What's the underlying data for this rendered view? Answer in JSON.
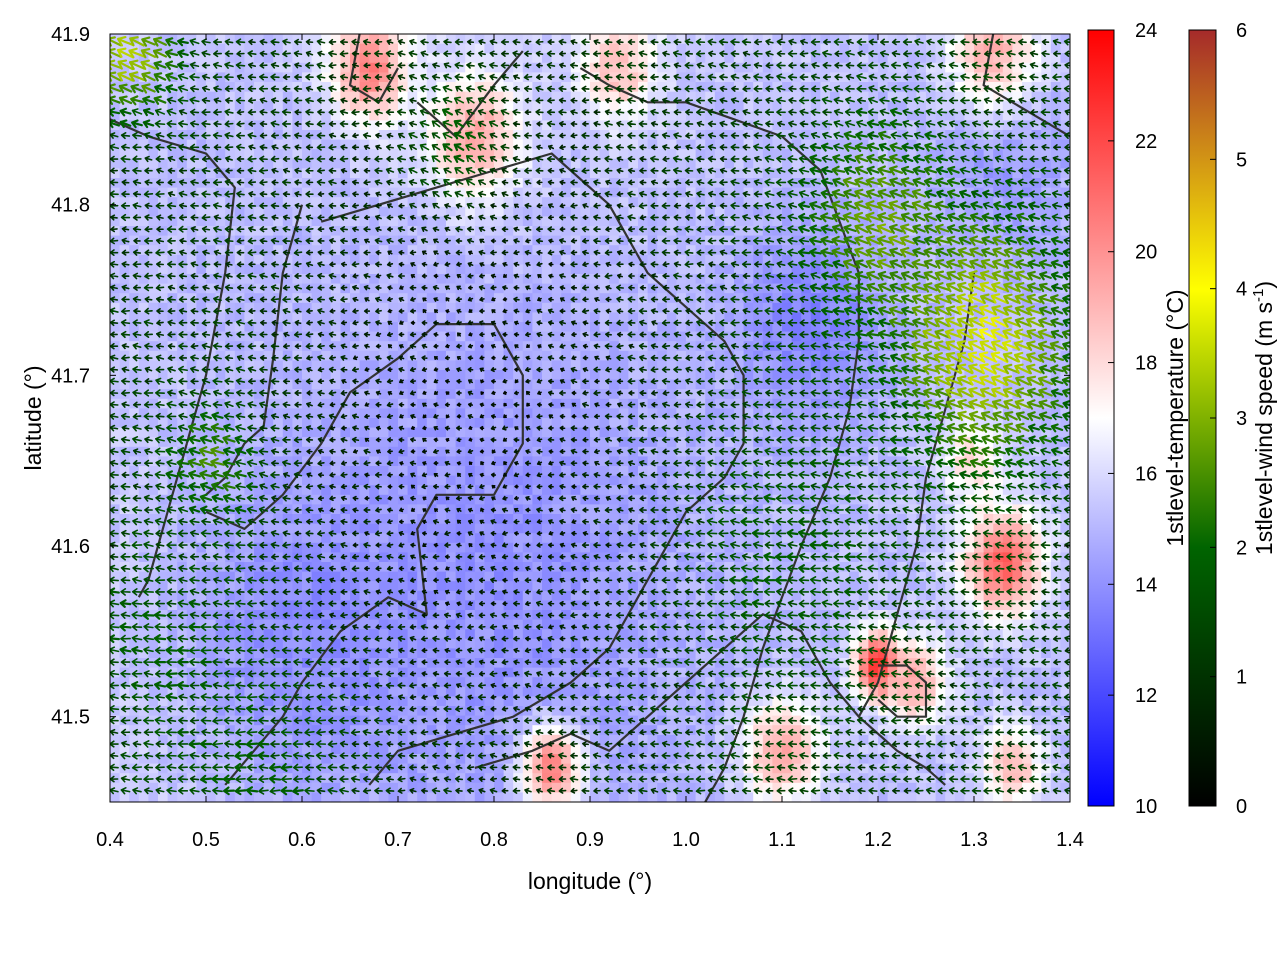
{
  "chart_data": {
    "type": "heatmap",
    "title": "",
    "xlabel": "longitude (°)",
    "ylabel": "latitude (°)",
    "xlim": [
      0.4,
      1.4
    ],
    "ylim": [
      41.45,
      41.9
    ],
    "x_ticks": [
      "0.4",
      "0.5",
      "0.6",
      "0.7",
      "0.8",
      "0.9",
      "1.0",
      "1.1",
      "1.2",
      "1.3",
      "1.4"
    ],
    "x_tick_values": [
      0.4,
      0.5,
      0.6,
      0.7,
      0.8,
      0.9,
      1.0,
      1.1,
      1.2,
      1.3,
      1.4
    ],
    "y_ticks": [
      "41.5",
      "41.6",
      "41.7",
      "41.8",
      "41.9"
    ],
    "y_tick_values": [
      41.5,
      41.6,
      41.7,
      41.8,
      41.9
    ],
    "temperature_colorbar": {
      "label": "1stlevel-temperature (°C)",
      "range": [
        10,
        24
      ],
      "ticks": [
        "10",
        "12",
        "14",
        "16",
        "18",
        "20",
        "22",
        "24"
      ],
      "tick_values": [
        10,
        12,
        14,
        16,
        18,
        20,
        22,
        24
      ],
      "colors": [
        "#0000ff",
        "#ffffff",
        "#ff0000"
      ]
    },
    "wind_colorbar": {
      "label": "1stlevel-wind speed (m s-1)",
      "label_main": "1stlevel-wind speed (m s",
      "label_sup": "-1",
      "label_end": ")",
      "range": [
        0,
        6
      ],
      "ticks": [
        "0",
        "1",
        "2",
        "3",
        "4",
        "5",
        "6"
      ],
      "tick_values": [
        0,
        1,
        2,
        3,
        4,
        5,
        6
      ],
      "colors": [
        "#000000",
        "#006400",
        "#ffff00",
        "#a52a2a"
      ]
    },
    "temperature_blobs_degC": [
      {
        "lon": 0.5,
        "lat": 41.8,
        "t": 15.2,
        "r": 0.25
      },
      {
        "lon": 0.8,
        "lat": 41.58,
        "t": 14.0,
        "r": 0.3
      },
      {
        "lon": 0.6,
        "lat": 41.55,
        "t": 13.8,
        "r": 0.15
      },
      {
        "lon": 1.13,
        "lat": 41.73,
        "t": 13.5,
        "r": 0.1
      },
      {
        "lon": 1.33,
        "lat": 41.83,
        "t": 14.2,
        "r": 0.1
      },
      {
        "lon": 0.67,
        "lat": 41.88,
        "t": 20.5,
        "r": 0.05
      },
      {
        "lon": 0.78,
        "lat": 41.84,
        "t": 19.5,
        "r": 0.06
      },
      {
        "lon": 0.93,
        "lat": 41.88,
        "t": 18.8,
        "r": 0.05
      },
      {
        "lon": 1.32,
        "lat": 41.89,
        "t": 19.0,
        "r": 0.06
      },
      {
        "lon": 1.33,
        "lat": 41.59,
        "t": 21.5,
        "r": 0.05
      },
      {
        "lon": 1.2,
        "lat": 41.53,
        "t": 23.5,
        "r": 0.03
      },
      {
        "lon": 1.1,
        "lat": 41.48,
        "t": 19.5,
        "r": 0.05
      },
      {
        "lon": 1.24,
        "lat": 41.52,
        "t": 19.5,
        "r": 0.04
      },
      {
        "lon": 1.34,
        "lat": 41.47,
        "t": 19.0,
        "r": 0.04
      },
      {
        "lon": 0.86,
        "lat": 41.47,
        "t": 20.5,
        "r": 0.04
      },
      {
        "lon": 1.3,
        "lat": 41.65,
        "t": 18.0,
        "r": 0.04
      }
    ],
    "wind_field_m_s": {
      "base_u": -1.2,
      "base_v": 0.1,
      "jets": [
        {
          "lon": 1.31,
          "lat": 41.72,
          "u": -3.4,
          "v": 1.6,
          "r": 0.09
        },
        {
          "lon": 1.2,
          "lat": 41.79,
          "u": -2.6,
          "v": 1.0,
          "r": 0.08
        },
        {
          "lon": 0.42,
          "lat": 41.89,
          "u": -3.0,
          "v": 1.4,
          "r": 0.05
        },
        {
          "lon": 0.76,
          "lat": 41.83,
          "u": -2.5,
          "v": 1.6,
          "r": 0.05
        },
        {
          "lon": 0.51,
          "lat": 41.65,
          "u": -2.5,
          "v": 0.8,
          "r": 0.05
        },
        {
          "lon": 0.45,
          "lat": 41.55,
          "u": -1.8,
          "v": 0.2,
          "r": 0.08
        },
        {
          "lon": 0.55,
          "lat": 41.47,
          "u": -1.8,
          "v": 0.0,
          "r": 0.1
        },
        {
          "lon": 1.1,
          "lat": 41.6,
          "u": -1.8,
          "v": 0.2,
          "r": 0.12
        }
      ],
      "calm": {
        "lon": 0.78,
        "lat": 41.68,
        "factor": 0.25,
        "r": 0.18
      }
    },
    "boundary_lines": [
      [
        [
          0.4,
          41.85
        ],
        [
          0.44,
          41.84
        ],
        [
          0.5,
          41.83
        ],
        [
          0.53,
          41.81
        ],
        [
          0.52,
          41.76
        ],
        [
          0.5,
          41.7
        ],
        [
          0.48,
          41.66
        ]
      ],
      [
        [
          0.48,
          41.66
        ],
        [
          0.46,
          41.62
        ],
        [
          0.44,
          41.58
        ],
        [
          0.43,
          41.57
        ]
      ],
      [
        [
          0.6,
          41.8
        ],
        [
          0.58,
          41.76
        ],
        [
          0.57,
          41.71
        ],
        [
          0.56,
          41.67
        ],
        [
          0.54,
          41.66
        ],
        [
          0.52,
          41.64
        ],
        [
          0.5,
          41.63
        ]
      ],
      [
        [
          0.52,
          41.46
        ],
        [
          0.55,
          41.48
        ],
        [
          0.58,
          41.5
        ],
        [
          0.6,
          41.52
        ],
        [
          0.64,
          41.55
        ],
        [
          0.69,
          41.57
        ],
        [
          0.73,
          41.56
        ],
        [
          0.72,
          41.61
        ],
        [
          0.74,
          41.63
        ],
        [
          0.8,
          41.63
        ],
        [
          0.83,
          41.66
        ],
        [
          0.83,
          41.7
        ],
        [
          0.8,
          41.73
        ],
        [
          0.74,
          41.73
        ],
        [
          0.7,
          41.71
        ],
        [
          0.65,
          41.69
        ],
        [
          0.62,
          41.66
        ],
        [
          0.58,
          41.63
        ],
        [
          0.54,
          41.61
        ],
        [
          0.5,
          41.62
        ]
      ],
      [
        [
          0.62,
          41.79
        ],
        [
          0.68,
          41.8
        ],
        [
          0.74,
          41.81
        ],
        [
          0.8,
          41.82
        ],
        [
          0.86,
          41.83
        ],
        [
          0.92,
          41.8
        ],
        [
          0.96,
          41.76
        ],
        [
          1.0,
          41.74
        ],
        [
          1.04,
          41.72
        ],
        [
          1.06,
          41.7
        ],
        [
          1.06,
          41.66
        ],
        [
          1.04,
          41.64
        ],
        [
          1.0,
          41.62
        ],
        [
          0.96,
          41.58
        ],
        [
          0.92,
          41.54
        ],
        [
          0.88,
          41.52
        ],
        [
          0.82,
          41.5
        ],
        [
          0.76,
          41.49
        ],
        [
          0.7,
          41.48
        ],
        [
          0.67,
          41.46
        ]
      ],
      [
        [
          0.78,
          41.47
        ],
        [
          0.84,
          41.48
        ],
        [
          0.88,
          41.49
        ],
        [
          0.92,
          41.48
        ],
        [
          0.96,
          41.5
        ],
        [
          1.0,
          41.52
        ],
        [
          1.04,
          41.54
        ],
        [
          1.08,
          41.56
        ],
        [
          1.12,
          41.55
        ],
        [
          1.15,
          41.52
        ],
        [
          1.18,
          41.5
        ],
        [
          1.22,
          41.48
        ],
        [
          1.25,
          41.47
        ],
        [
          1.27,
          41.46
        ]
      ],
      [
        [
          1.3,
          41.76
        ],
        [
          1.29,
          41.72
        ],
        [
          1.27,
          41.68
        ],
        [
          1.25,
          41.64
        ],
        [
          1.24,
          41.6
        ],
        [
          1.22,
          41.56
        ],
        [
          1.2,
          41.52
        ],
        [
          1.18,
          41.5
        ]
      ],
      [
        [
          1.0,
          41.86
        ],
        [
          1.05,
          41.85
        ],
        [
          1.1,
          41.84
        ],
        [
          1.14,
          41.82
        ],
        [
          1.16,
          41.79
        ],
        [
          1.18,
          41.76
        ],
        [
          1.18,
          41.72
        ],
        [
          1.17,
          41.68
        ],
        [
          1.15,
          41.64
        ],
        [
          1.12,
          41.6
        ],
        [
          1.1,
          41.57
        ],
        [
          1.08,
          41.54
        ],
        [
          1.06,
          41.5
        ],
        [
          1.04,
          41.47
        ],
        [
          1.02,
          41.45
        ]
      ],
      [
        [
          0.89,
          41.88
        ],
        [
          0.92,
          41.87
        ],
        [
          0.96,
          41.86
        ],
        [
          1.0,
          41.86
        ]
      ],
      [
        [
          0.66,
          41.9
        ],
        [
          0.65,
          41.87
        ],
        [
          0.68,
          41.86
        ],
        [
          0.7,
          41.88
        ]
      ],
      [
        [
          1.32,
          41.9
        ],
        [
          1.31,
          41.87
        ],
        [
          1.34,
          41.86
        ],
        [
          1.37,
          41.85
        ],
        [
          1.4,
          41.84
        ]
      ],
      [
        [
          0.72,
          41.86
        ],
        [
          0.76,
          41.84
        ],
        [
          0.8,
          41.87
        ],
        [
          0.83,
          41.89
        ]
      ],
      [
        [
          1.2,
          41.53
        ],
        [
          1.23,
          41.53
        ],
        [
          1.25,
          41.52
        ],
        [
          1.25,
          41.5
        ],
        [
          1.22,
          41.5
        ],
        [
          1.2,
          41.51
        ]
      ]
    ]
  }
}
